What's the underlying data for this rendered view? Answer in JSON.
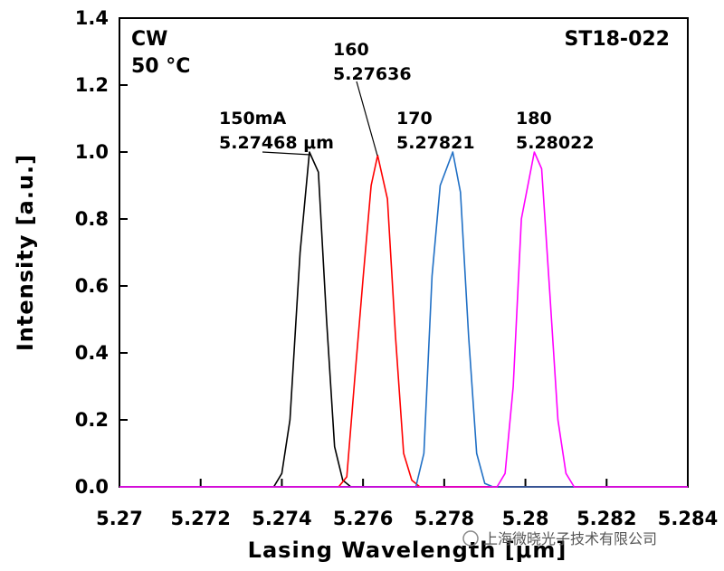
{
  "chart_data": {
    "type": "line",
    "title": "",
    "xlabel": "Lasing Wavelength [μm]",
    "ylabel": "Intensity [a.u.]",
    "xlim": [
      5.27,
      5.284
    ],
    "ylim": [
      0,
      1.4
    ],
    "x_ticks": [
      "5.27",
      "5.272",
      "5.274",
      "5.276",
      "5.278",
      "5.28",
      "5.282",
      "5.284"
    ],
    "y_ticks": [
      "0.0",
      "0.2",
      "0.4",
      "0.6",
      "0.8",
      "1.0",
      "1.2",
      "1.4"
    ],
    "grid": false,
    "series": [
      {
        "name": "150mA",
        "color": "#000000",
        "x": [
          5.27,
          5.2738,
          5.274,
          5.2742,
          5.27445,
          5.27468,
          5.2749,
          5.2751,
          5.2753,
          5.2755,
          5.2757,
          5.284
        ],
        "y": [
          0,
          0,
          0.04,
          0.2,
          0.7,
          1.0,
          0.94,
          0.5,
          0.12,
          0.02,
          0,
          0
        ]
      },
      {
        "name": "160",
        "color": "#ff0000",
        "x": [
          5.27,
          5.2754,
          5.2756,
          5.2758,
          5.276,
          5.2762,
          5.27636,
          5.2766,
          5.2768,
          5.277,
          5.2772,
          5.2774,
          5.284
        ],
        "y": [
          0,
          0,
          0.03,
          0.33,
          0.62,
          0.9,
          0.99,
          0.86,
          0.45,
          0.1,
          0.02,
          0,
          0
        ]
      },
      {
        "name": "170",
        "color": "#1f6fc5",
        "x": [
          5.27,
          5.2773,
          5.2775,
          5.2777,
          5.2779,
          5.27821,
          5.2784,
          5.2786,
          5.2788,
          5.279,
          5.2792,
          5.284
        ],
        "y": [
          0,
          0,
          0.1,
          0.63,
          0.9,
          1.0,
          0.88,
          0.45,
          0.1,
          0.01,
          0,
          0
        ]
      },
      {
        "name": "180",
        "color": "#ff00ff",
        "x": [
          5.27,
          5.2793,
          5.2795,
          5.2797,
          5.2799,
          5.28022,
          5.2804,
          5.2806,
          5.2808,
          5.281,
          5.2812,
          5.284
        ],
        "y": [
          0,
          0,
          0.04,
          0.3,
          0.8,
          1.0,
          0.95,
          0.58,
          0.2,
          0.04,
          0,
          0
        ]
      }
    ],
    "annotations": {
      "mode_line1": "CW",
      "mode_line2": "50 °C",
      "device": "ST18-022",
      "peaks": [
        {
          "current": "150mA",
          "wavelength": "5.27468 μm"
        },
        {
          "current": "160",
          "wavelength": "5.27636"
        },
        {
          "current": "170",
          "wavelength": "5.27821"
        },
        {
          "current": "180",
          "wavelength": "5.28022"
        }
      ]
    }
  },
  "watermark": "上海微晓光子技术有限公司"
}
